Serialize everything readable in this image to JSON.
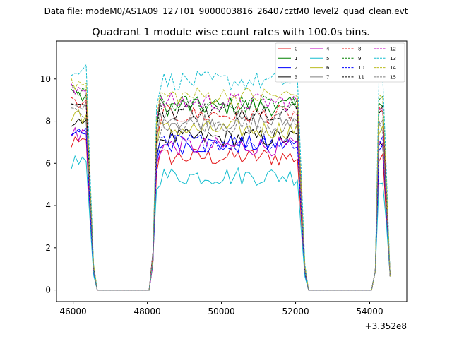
{
  "suptitle": "Data file: modeM0/AS1A09_127T01_9000003816_26407cztM0_level2_quad_clean.evt",
  "chart_data": {
    "type": "line",
    "title": "Quadrant 1 module wise count rates with 100.0s bins.",
    "xlabel": "",
    "ylabel": "",
    "x_offset_label": "+3.352e8",
    "xlim": [
      45550,
      55000
    ],
    "ylim": [
      -0.55,
      11.8
    ],
    "xticks": [
      46000,
      48000,
      50000,
      52000,
      54000
    ],
    "yticks": [
      0,
      2,
      4,
      6,
      8,
      10
    ],
    "grid": false,
    "legend": {
      "placement": "top-right",
      "columns": 4
    },
    "segments": [
      {
        "start": 45950,
        "end": 46550
      },
      {
        "start": 48150,
        "end": 52250
      },
      {
        "start": 54150,
        "end": 54550
      }
    ],
    "series": [
      {
        "name": "0",
        "color": "#e41a1c",
        "dash": "solid",
        "level": 6.3
      },
      {
        "name": "1",
        "color": "#008000",
        "dash": "solid",
        "level": 8.7
      },
      {
        "name": "2",
        "color": "#0000ff",
        "dash": "solid",
        "level": 6.9
      },
      {
        "name": "3",
        "color": "#000000",
        "dash": "solid",
        "level": 7.2
      },
      {
        "name": "4",
        "color": "#bf00bf",
        "dash": "solid",
        "level": 6.8
      },
      {
        "name": "5",
        "color": "#17becf",
        "dash": "solid",
        "level": 5.4
      },
      {
        "name": "6",
        "color": "#bcbd22",
        "dash": "solid",
        "level": 7.6
      },
      {
        "name": "7",
        "color": "#7f7f7f",
        "dash": "solid",
        "level": 8.0
      },
      {
        "name": "8",
        "color": "#e41a1c",
        "dash": "dashed",
        "level": 8.3
      },
      {
        "name": "9",
        "color": "#008000",
        "dash": "dashed",
        "level": 8.8
      },
      {
        "name": "10",
        "color": "#0000ff",
        "dash": "dashed",
        "level": 7.0
      },
      {
        "name": "11",
        "color": "#000000",
        "dash": "dashed",
        "level": 8.5
      },
      {
        "name": "12",
        "color": "#bf00bf",
        "dash": "dashed",
        "level": 8.9
      },
      {
        "name": "13",
        "color": "#17becf",
        "dash": "dashed",
        "level": 9.9
      },
      {
        "name": "14",
        "color": "#bcbd22",
        "dash": "dashed",
        "level": 9.2
      },
      {
        "name": "15",
        "color": "#7f7f7f",
        "dash": "dashed",
        "level": 7.8
      }
    ]
  }
}
